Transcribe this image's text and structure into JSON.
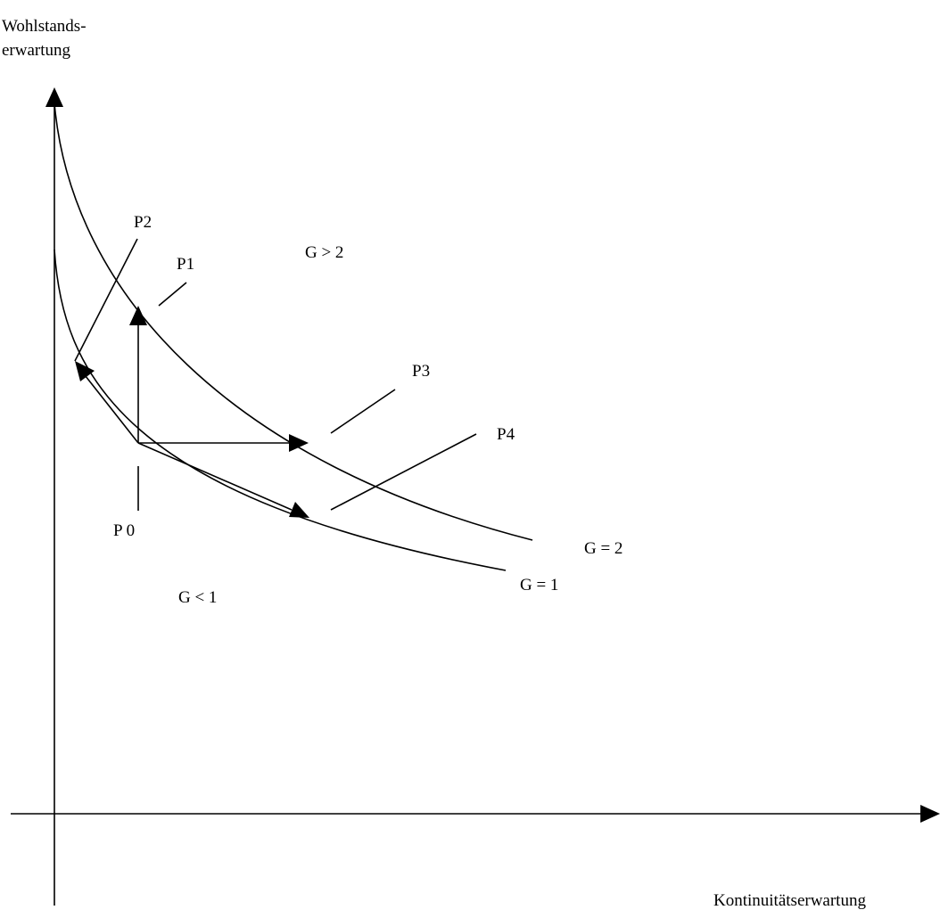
{
  "axes": {
    "y_label_line1": "Wohlstands-",
    "y_label_line2": "erwartung",
    "x_label": "Kontinuitätserwartung"
  },
  "curves": {
    "g1_label": "G = 1",
    "g2_label": "G = 2"
  },
  "regions": {
    "above_label": "G > 2",
    "below_label": "G < 1"
  },
  "points": {
    "p0": "P 0",
    "p1": "P1",
    "p2": "P2",
    "p3": "P3",
    "p4": "P4"
  }
}
